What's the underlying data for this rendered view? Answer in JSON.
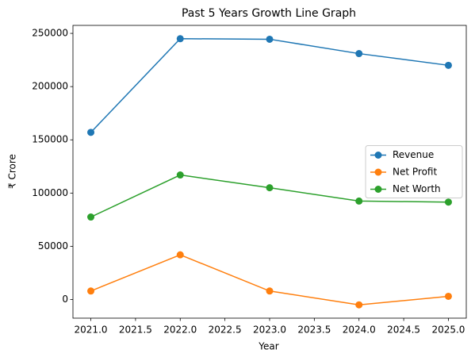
{
  "chart_data": {
    "type": "line",
    "title": "Past 5 Years Growth Line Graph",
    "x_label": "Year",
    "y_label": "₹ Crore",
    "x": [
      2021,
      2022,
      2023,
      2024,
      2025
    ],
    "series": [
      {
        "name": "Revenue",
        "color": "#1f77b4",
        "values": [
          157000,
          245000,
          244500,
          231000,
          220000
        ]
      },
      {
        "name": "Net Profit",
        "color": "#ff7f0e",
        "values": [
          8000,
          42000,
          8000,
          -5000,
          3000
        ]
      },
      {
        "name": "Net Worth",
        "color": "#2ca02c",
        "values": [
          77500,
          117000,
          105000,
          92500,
          91500
        ]
      }
    ],
    "xlim": [
      2020.8,
      2025.2
    ],
    "xticks": [
      {
        "value": 2021,
        "label": "2021.0"
      },
      {
        "value": 2021.5,
        "label": "2021.5"
      },
      {
        "value": 2022,
        "label": "2022.0"
      },
      {
        "value": 2022.5,
        "label": "2022.5"
      },
      {
        "value": 2023,
        "label": "2023.0"
      },
      {
        "value": 2023.5,
        "label": "2023.5"
      },
      {
        "value": 2024,
        "label": "2024.0"
      },
      {
        "value": 2024.5,
        "label": "2024.5"
      },
      {
        "value": 2025,
        "label": "2025.0"
      }
    ],
    "ylim": [
      -17500,
      257500
    ],
    "yticks": [
      0,
      50000,
      100000,
      150000,
      200000,
      250000
    ],
    "legend": "right"
  }
}
